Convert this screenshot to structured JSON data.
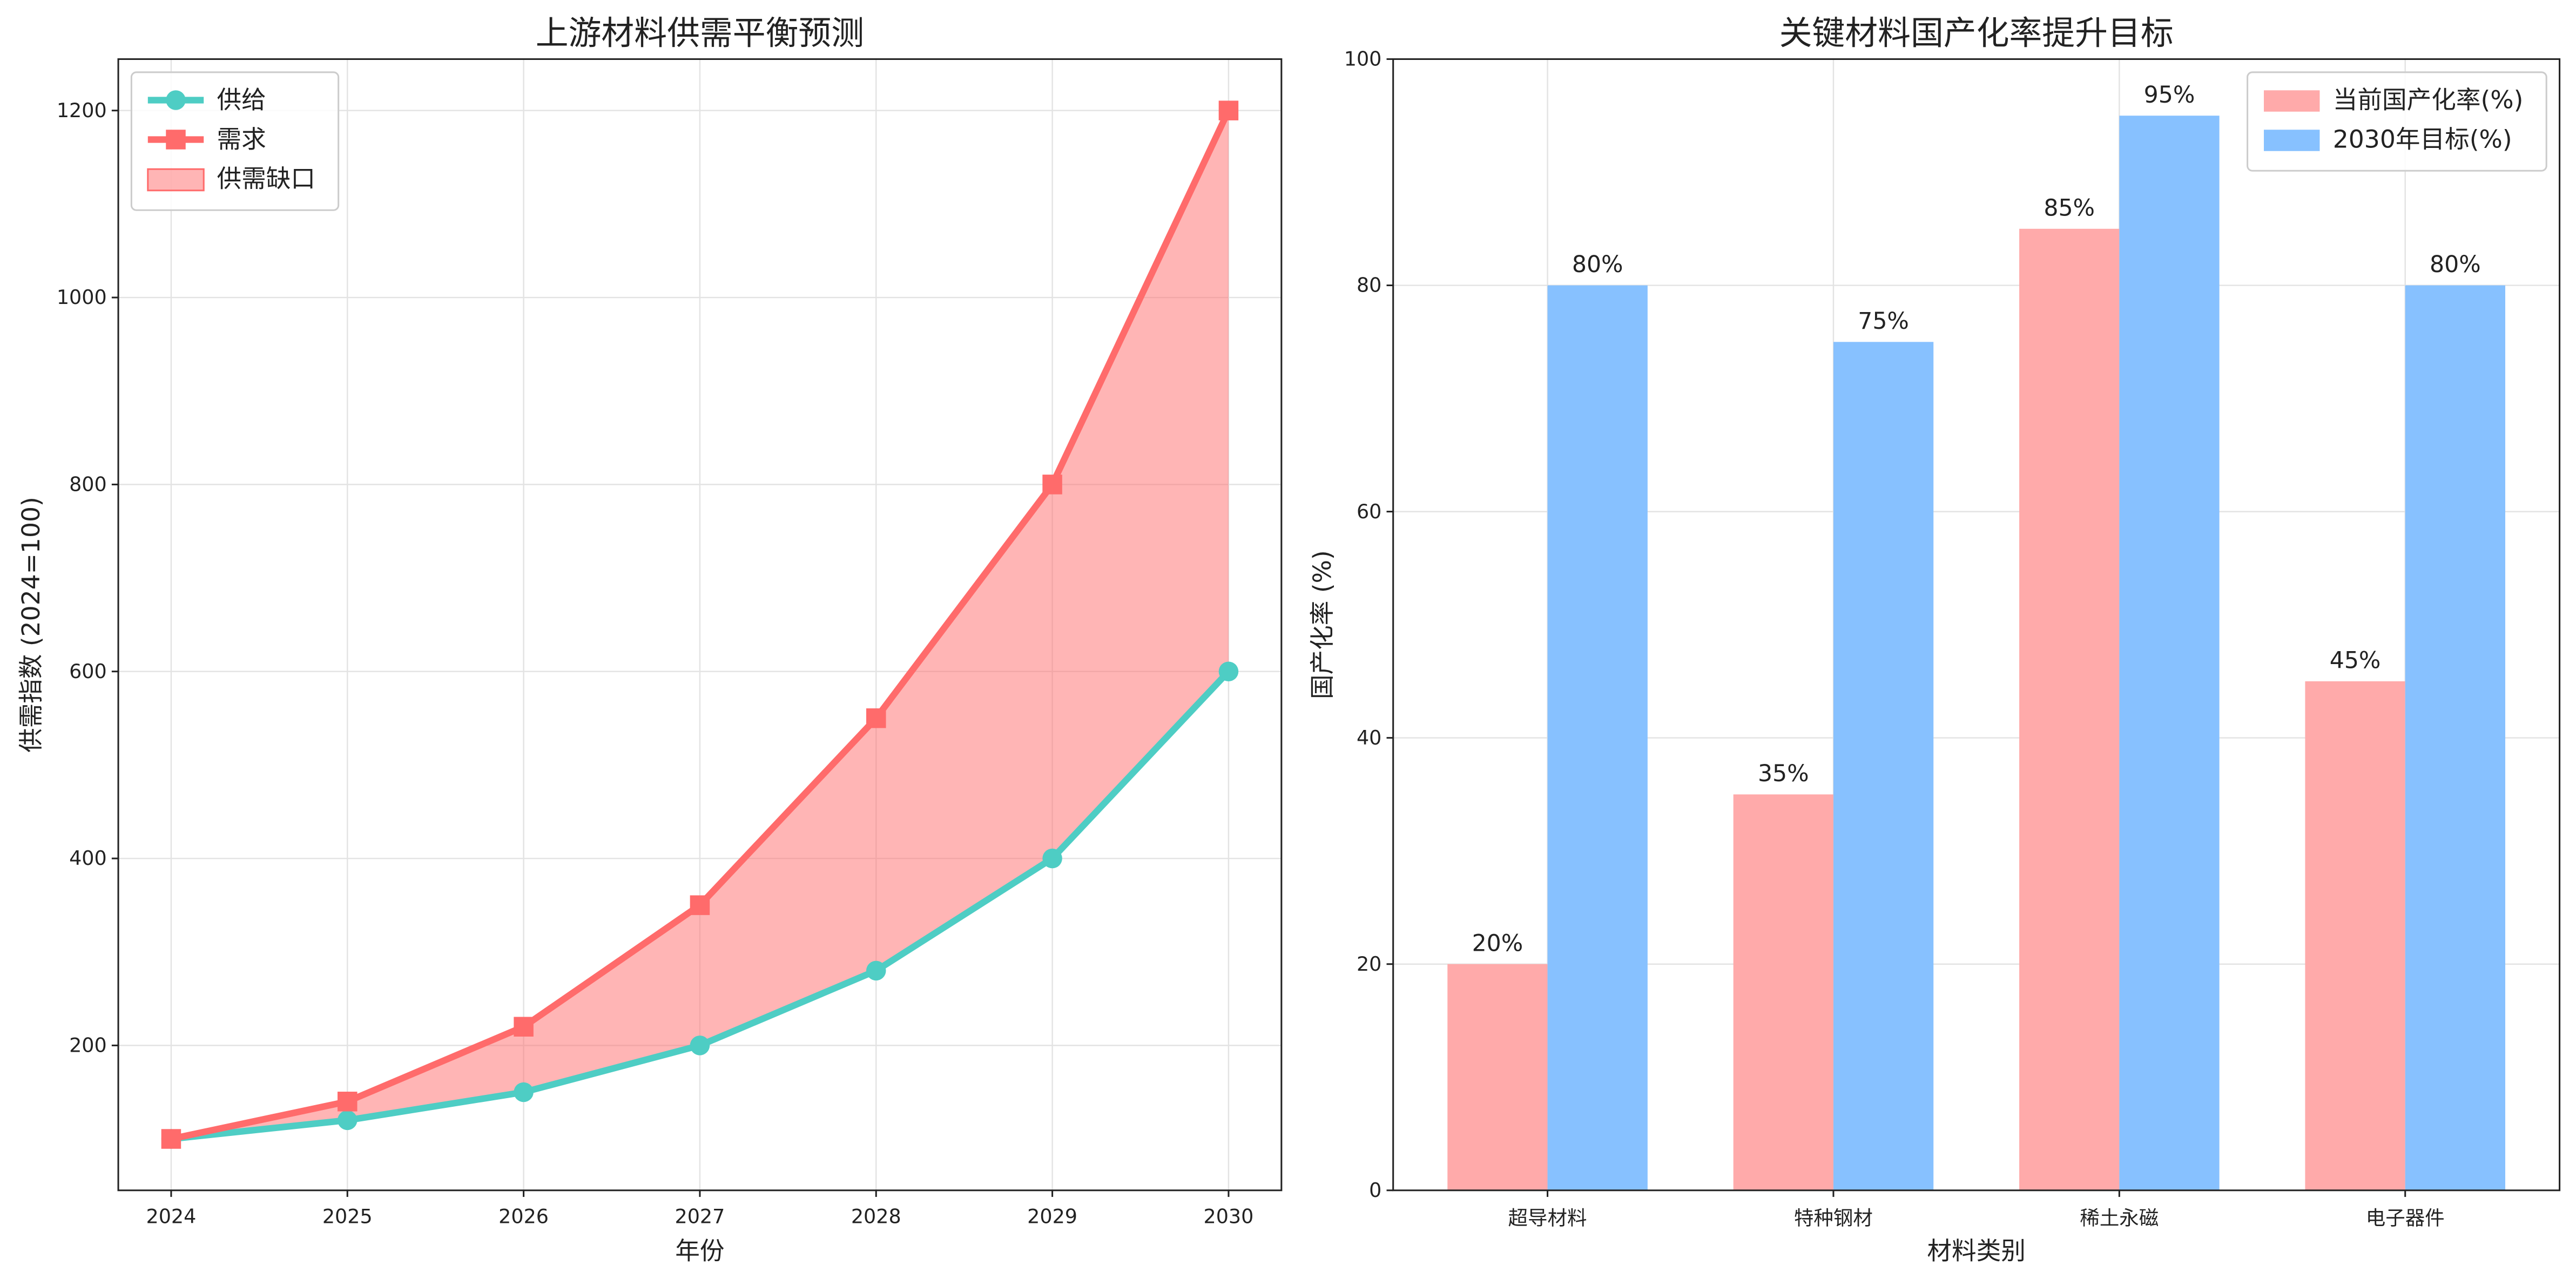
{
  "chart_data": [
    {
      "type": "line",
      "title": "上游材料供需平衡预测",
      "x_label": "年份",
      "y_label": "供需指数 (2024=100)",
      "x": [
        2024,
        2025,
        2026,
        2027,
        2028,
        2029,
        2030
      ],
      "series": [
        {
          "name": "供给",
          "color": "#4ECDC4",
          "marker": "circle",
          "values": [
            100,
            120,
            150,
            200,
            280,
            400,
            600
          ]
        },
        {
          "name": "需求",
          "color": "#FF6B6B",
          "marker": "square",
          "values": [
            100,
            140,
            220,
            350,
            550,
            800,
            1200
          ]
        }
      ],
      "fill": {
        "name": "供需缺口",
        "color": "#FF6B6B"
      },
      "xlim": [
        2023.7,
        2030.3
      ],
      "xticks": [
        2024,
        2025,
        2026,
        2027,
        2028,
        2029,
        2030
      ],
      "ylim": [
        45,
        1255
      ],
      "yticks": [
        200,
        400,
        600,
        800,
        1000,
        1200
      ],
      "grid": true,
      "legend": "upper-left"
    },
    {
      "type": "grouped-bar",
      "title": "关键材料国产化率提升目标",
      "x_label": "材料类别",
      "y_label": "国产化率 (%)",
      "categories": [
        "超导材料",
        "特种钢材",
        "稀土永磁",
        "电子器件"
      ],
      "series": [
        {
          "name": "当前国产化率(%)",
          "color": "#FFAAAA",
          "values": [
            20,
            35,
            85,
            45
          ],
          "value_labels": [
            "20%",
            "35%",
            "85%",
            "45%"
          ]
        },
        {
          "name": "2030年目标(%)",
          "color": "#87C1FF",
          "values": [
            80,
            75,
            95,
            80
          ],
          "value_labels": [
            "80%",
            "75%",
            "95%",
            "80%"
          ]
        }
      ],
      "ylim": [
        0,
        100
      ],
      "yticks": [
        0,
        20,
        40,
        60,
        80,
        100
      ],
      "grid": true,
      "legend": "upper-right"
    }
  ]
}
